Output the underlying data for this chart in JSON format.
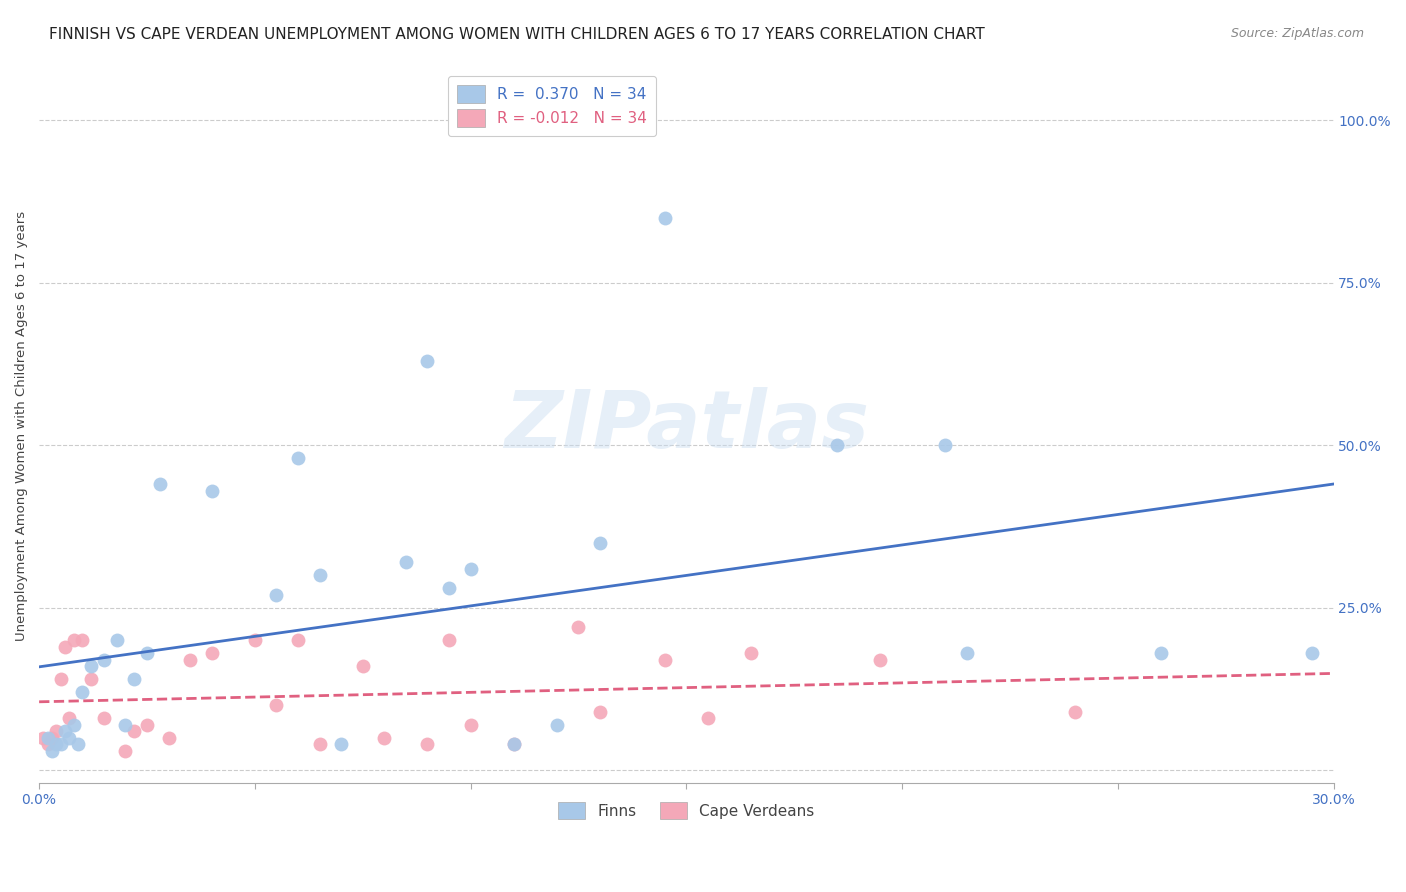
{
  "title": "FINNISH VS CAPE VERDEAN UNEMPLOYMENT AMONG WOMEN WITH CHILDREN AGES 6 TO 17 YEARS CORRELATION CHART",
  "source": "Source: ZipAtlas.com",
  "xlim": [
    0.0,
    0.3
  ],
  "ylim": [
    -0.02,
    1.08
  ],
  "finns_R": 0.37,
  "finns_N": 34,
  "cape_verdeans_R": -0.012,
  "cape_verdeans_N": 34,
  "finns_color": "#A8C8E8",
  "cape_verdeans_color": "#F4A8B8",
  "finns_line_color": "#4472C4",
  "cape_verdeans_line_color": "#E06080",
  "watermark_text": "ZIPatlas",
  "finns_x": [
    0.002,
    0.003,
    0.004,
    0.005,
    0.006,
    0.007,
    0.008,
    0.009,
    0.01,
    0.012,
    0.015,
    0.018,
    0.02,
    0.022,
    0.025,
    0.028,
    0.04,
    0.055,
    0.06,
    0.065,
    0.07,
    0.085,
    0.09,
    0.095,
    0.1,
    0.11,
    0.12,
    0.13,
    0.145,
    0.185,
    0.21,
    0.215,
    0.26,
    0.295
  ],
  "finns_y": [
    0.05,
    0.03,
    0.04,
    0.04,
    0.06,
    0.05,
    0.07,
    0.04,
    0.12,
    0.16,
    0.17,
    0.2,
    0.07,
    0.14,
    0.18,
    0.44,
    0.43,
    0.27,
    0.48,
    0.3,
    0.04,
    0.32,
    0.63,
    0.28,
    0.31,
    0.04,
    0.07,
    0.35,
    0.85,
    0.5,
    0.5,
    0.18,
    0.18,
    0.18
  ],
  "cape_verdeans_x": [
    0.001,
    0.002,
    0.003,
    0.004,
    0.005,
    0.006,
    0.007,
    0.008,
    0.01,
    0.012,
    0.015,
    0.02,
    0.022,
    0.025,
    0.03,
    0.035,
    0.04,
    0.05,
    0.055,
    0.06,
    0.065,
    0.075,
    0.08,
    0.09,
    0.095,
    0.1,
    0.11,
    0.125,
    0.13,
    0.145,
    0.155,
    0.165,
    0.195,
    0.24
  ],
  "cape_verdeans_y": [
    0.05,
    0.04,
    0.05,
    0.06,
    0.14,
    0.19,
    0.08,
    0.2,
    0.2,
    0.14,
    0.08,
    0.03,
    0.06,
    0.07,
    0.05,
    0.17,
    0.18,
    0.2,
    0.1,
    0.2,
    0.04,
    0.16,
    0.05,
    0.04,
    0.2,
    0.07,
    0.04,
    0.22,
    0.09,
    0.17,
    0.08,
    0.18,
    0.17,
    0.09
  ],
  "ylabel": "Unemployment Among Women with Children Ages 6 to 17 years",
  "legend_finn_label": "Finns",
  "legend_cape_label": "Cape Verdeans",
  "yticks": [
    0.0,
    0.25,
    0.5,
    0.75,
    1.0
  ],
  "ytick_labels": [
    "",
    "25.0%",
    "50.0%",
    "75.0%",
    "100.0%"
  ],
  "xticks": [
    0.0,
    0.05,
    0.1,
    0.15,
    0.2,
    0.25,
    0.3
  ],
  "xtick_labels": [
    "0.0%",
    "",
    "",
    "",
    "",
    "",
    "30.0%"
  ],
  "title_fontsize": 11,
  "axis_label_fontsize": 9.5,
  "tick_fontsize": 10,
  "legend_fontsize": 11,
  "source_fontsize": 9,
  "scatter_size": 100,
  "background_color": "#FFFFFF",
  "grid_color": "#CCCCCC",
  "tick_color": "#4472C4"
}
